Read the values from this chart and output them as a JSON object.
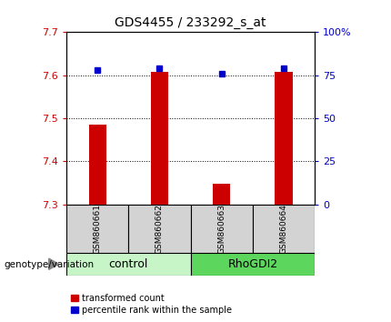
{
  "title": "GDS4455 / 233292_s_at",
  "samples": [
    "GSM860661",
    "GSM860662",
    "GSM860663",
    "GSM860664"
  ],
  "group_labels": [
    "control",
    "RhoGDI2"
  ],
  "group_colors": [
    "#c8f5c8",
    "#5cd65c"
  ],
  "bar_values": [
    7.485,
    7.607,
    7.348,
    7.607
  ],
  "percentile_values": [
    78,
    79,
    76,
    79
  ],
  "ylim_left": [
    7.3,
    7.7
  ],
  "ylim_right": [
    0,
    100
  ],
  "yticks_left": [
    7.3,
    7.4,
    7.5,
    7.6,
    7.7
  ],
  "yticks_right": [
    0,
    25,
    50,
    75,
    100
  ],
  "ytick_labels_right": [
    "0",
    "25",
    "50",
    "75",
    "100%"
  ],
  "bar_color": "#cc0000",
  "dot_color": "#0000cc",
  "bar_width": 0.28,
  "left_tick_color": "#cc0000",
  "right_tick_color": "#0000cc",
  "xlabel": "genotype/variation",
  "legend_red": "transformed count",
  "legend_blue": "percentile rank within the sample",
  "sample_box_color": "#d3d3d3"
}
